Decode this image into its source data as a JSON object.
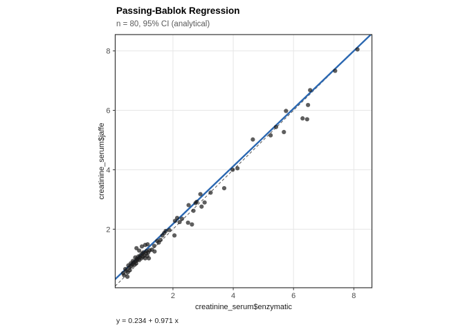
{
  "figure": {
    "title": "Passing-Bablok Regression",
    "subtitle": "n = 80, 95% CI (analytical)",
    "caption": "y = 0.234 + 0.971 x",
    "xlabel": "creatinine_serum$enzymatic",
    "ylabel": "creatinine_serum$jaffe"
  },
  "colors": {
    "background": "#ffffff",
    "panel_background": "#ffffff",
    "panel_border": "#333333",
    "grid": "#e6e6e6",
    "tick": "#333333",
    "tick_label": "#4d4d4d",
    "regression_line": "#2a67b1",
    "identity_line": "#555555",
    "point": "#1a1a1a",
    "subtitle_text": "#5a5a5a"
  },
  "chart_data": {
    "type": "scatter",
    "title": "Passing-Bablok Regression",
    "subtitle": "n = 80, 95% CI (analytical)",
    "xlabel": "creatinine_serum$enzymatic",
    "ylabel": "creatinine_serum$jaffe",
    "xlim": [
      0.085,
      8.6
    ],
    "ylim": [
      0.03,
      8.55
    ],
    "xticks": [
      2,
      4,
      6,
      8
    ],
    "yticks": [
      2,
      4,
      6,
      8
    ],
    "grid": "major-only",
    "legend": "none",
    "n": 80,
    "regression": {
      "method": "Passing-Bablok",
      "intercept": 0.234,
      "slope": 0.971,
      "equation": "y = 0.234 + 0.971 x",
      "ci_label": "95% CI (analytical)",
      "style": "solid"
    },
    "identity_line": {
      "intercept": 0,
      "slope": 1,
      "style": "dashed"
    },
    "points": [
      [
        8.12,
        8.05
      ],
      [
        7.38,
        7.33
      ],
      [
        6.55,
        6.68
      ],
      [
        6.48,
        6.18
      ],
      [
        5.75,
        5.98
      ],
      [
        6.3,
        5.73
      ],
      [
        6.45,
        5.7
      ],
      [
        5.42,
        5.44
      ],
      [
        5.68,
        5.27
      ],
      [
        5.24,
        5.16
      ],
      [
        4.65,
        5.02
      ],
      [
        4.14,
        4.05
      ],
      [
        3.98,
        4.0
      ],
      [
        3.7,
        3.38
      ],
      [
        3.25,
        3.23
      ],
      [
        2.91,
        3.18
      ],
      [
        3.05,
        2.9
      ],
      [
        2.79,
        2.92
      ],
      [
        2.75,
        2.88
      ],
      [
        2.95,
        2.76
      ],
      [
        2.68,
        2.62
      ],
      [
        2.52,
        2.81
      ],
      [
        2.5,
        2.22
      ],
      [
        2.63,
        2.16
      ],
      [
        2.3,
        2.35
      ],
      [
        2.14,
        2.38
      ],
      [
        2.22,
        2.24
      ],
      [
        2.07,
        2.28
      ],
      [
        1.88,
        1.97
      ],
      [
        1.76,
        1.94
      ],
      [
        2.05,
        1.79
      ],
      [
        1.71,
        1.87
      ],
      [
        1.65,
        1.79
      ],
      [
        1.59,
        1.64
      ],
      [
        1.53,
        1.55
      ],
      [
        1.48,
        1.6
      ],
      [
        1.38,
        1.44
      ],
      [
        1.3,
        1.31
      ],
      [
        1.22,
        1.29
      ],
      [
        1.39,
        1.25
      ],
      [
        1.16,
        1.49
      ],
      [
        1.08,
        1.47
      ],
      [
        0.97,
        1.42
      ],
      [
        0.79,
        1.36
      ],
      [
        0.35,
        0.52
      ],
      [
        0.38,
        0.45
      ],
      [
        0.42,
        0.66
      ],
      [
        0.45,
        0.6
      ],
      [
        0.49,
        0.4
      ],
      [
        0.5,
        0.55
      ],
      [
        0.52,
        0.78
      ],
      [
        0.55,
        0.7
      ],
      [
        0.57,
        0.62
      ],
      [
        0.6,
        0.85
      ],
      [
        0.62,
        0.75
      ],
      [
        0.65,
        0.81
      ],
      [
        0.67,
        0.93
      ],
      [
        0.7,
        0.88
      ],
      [
        0.72,
        0.8
      ],
      [
        0.75,
        1.05
      ],
      [
        0.76,
        0.92
      ],
      [
        0.78,
        0.85
      ],
      [
        0.8,
        1.0
      ],
      [
        0.82,
        0.95
      ],
      [
        0.85,
        1.08
      ],
      [
        0.87,
        0.98
      ],
      [
        0.88,
        1.28
      ],
      [
        0.9,
        1.05
      ],
      [
        0.92,
        1.12
      ],
      [
        0.95,
        1.02
      ],
      [
        0.98,
        1.18
      ],
      [
        1.0,
        1.08
      ],
      [
        1.02,
        1.22
      ],
      [
        1.05,
        1.12
      ],
      [
        1.08,
        1.02
      ],
      [
        1.1,
        1.2
      ],
      [
        1.12,
        1.26
      ],
      [
        1.15,
        1.1
      ],
      [
        1.18,
        1.22
      ],
      [
        1.2,
        1.02
      ]
    ]
  }
}
